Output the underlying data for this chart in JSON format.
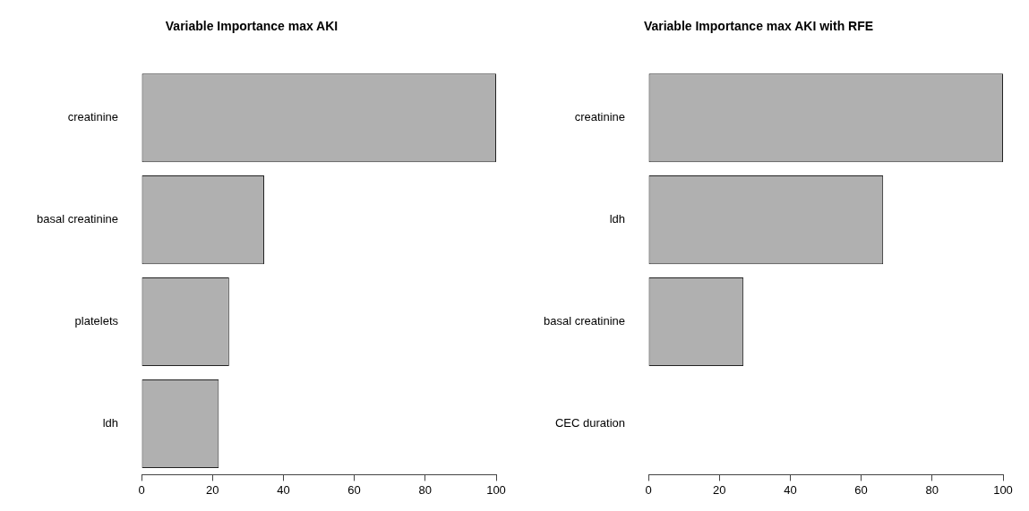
{
  "chart_data": [
    {
      "type": "bar",
      "orientation": "horizontal",
      "title": "Variable Importance max AKI",
      "categories": [
        "creatinine",
        "basal creatinine",
        "platelets",
        "ldh"
      ],
      "values": [
        100,
        34.6,
        24.7,
        21.8
      ],
      "color": "#b0b0b0",
      "xlim": [
        0,
        100
      ],
      "xticks": [
        0,
        20,
        40,
        60,
        80,
        100
      ],
      "grid": false
    },
    {
      "type": "bar",
      "orientation": "horizontal",
      "title": "Variable Importance max AKI with RFE",
      "categories": [
        "creatinine",
        "ldh",
        "basal creatinine",
        "CEC duration"
      ],
      "values": [
        100,
        66.2,
        26.8,
        0
      ],
      "color": "#b0b0b0",
      "xlim": [
        0,
        100
      ],
      "xticks": [
        0,
        20,
        40,
        60,
        80,
        100
      ],
      "grid": false
    }
  ]
}
